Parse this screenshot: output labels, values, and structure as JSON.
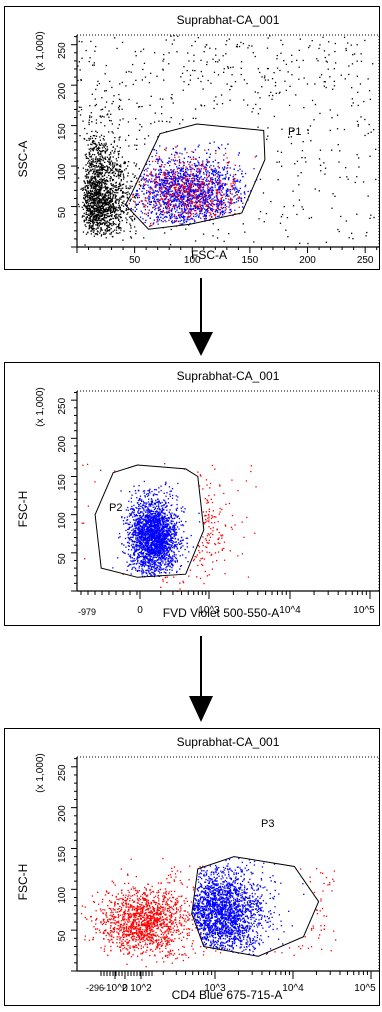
{
  "chart_data": [
    {
      "type": "scatter",
      "title": "Suprabhat-CA_001",
      "xlabel": "FSC-A",
      "ylabel": "SSC-A",
      "x_scale_label": "(x 1,000)",
      "y_scale_label": "(x 1,000)",
      "x_ticks": [
        "50",
        "100",
        "150",
        "200",
        "250"
      ],
      "y_ticks": [
        "50",
        "100",
        "150",
        "200",
        "250"
      ],
      "xlim": [
        0,
        262
      ],
      "ylim": [
        0,
        262
      ],
      "gate": {
        "name": "P1",
        "polygon": [
          [
            48,
            68
          ],
          [
            72,
            140
          ],
          [
            104,
            152
          ],
          [
            162,
            144
          ],
          [
            163,
            108
          ],
          [
            143,
            42
          ],
          [
            98,
            28
          ],
          [
            62,
            22
          ],
          [
            42,
            52
          ]
        ]
      },
      "series": [
        {
          "color": "#000000",
          "population": "ungated"
        },
        {
          "color": "#ff0000",
          "population": "gated"
        },
        {
          "color": "#0000ff",
          "population": "gated"
        }
      ]
    },
    {
      "type": "scatter",
      "title": "Suprabhat-CA_001",
      "xlabel": "FVD Violet 500-550-A",
      "ylabel": "FSC-H",
      "y_scale_label": "(x 1,000)",
      "x_ticks": [
        "-979",
        "0",
        "10^3",
        "10^4",
        "10^5"
      ],
      "y_ticks": [
        "50",
        "100",
        "150",
        "200",
        "250"
      ],
      "ylim": [
        0,
        262
      ],
      "gate": {
        "name": "P2",
        "polygon": [
          [
            0.12,
            155
          ],
          [
            0.2,
            165
          ],
          [
            0.36,
            160
          ],
          [
            0.4,
            150
          ],
          [
            0.42,
            80
          ],
          [
            0.36,
            22
          ],
          [
            0.2,
            18
          ],
          [
            0.08,
            30
          ],
          [
            0.06,
            100
          ]
        ]
      },
      "series": [
        {
          "color": "#ff0000",
          "population": "ungated"
        },
        {
          "color": "#0000ff",
          "population": "gated"
        }
      ]
    },
    {
      "type": "scatter",
      "title": "Suprabhat-CA_001",
      "xlabel": "CD4 Blue 675-715-A",
      "ylabel": "FSC-H",
      "y_scale_label": "(x 1,000)",
      "x_ticks": [
        "-296",
        "-10^2",
        "0",
        "10^2",
        "10^3",
        "10^4",
        "10^5"
      ],
      "y_ticks": [
        "50",
        "100",
        "150",
        "200",
        "250"
      ],
      "ylim": [
        0,
        262
      ],
      "gate": {
        "name": "P3",
        "polygon": [
          [
            0.4,
            125
          ],
          [
            0.52,
            140
          ],
          [
            0.72,
            128
          ],
          [
            0.8,
            85
          ],
          [
            0.75,
            42
          ],
          [
            0.6,
            18
          ],
          [
            0.42,
            30
          ],
          [
            0.38,
            70
          ]
        ]
      },
      "series": [
        {
          "color": "#ff0000",
          "population": "ungated"
        },
        {
          "color": "#0000ff",
          "population": "gated"
        }
      ]
    }
  ]
}
